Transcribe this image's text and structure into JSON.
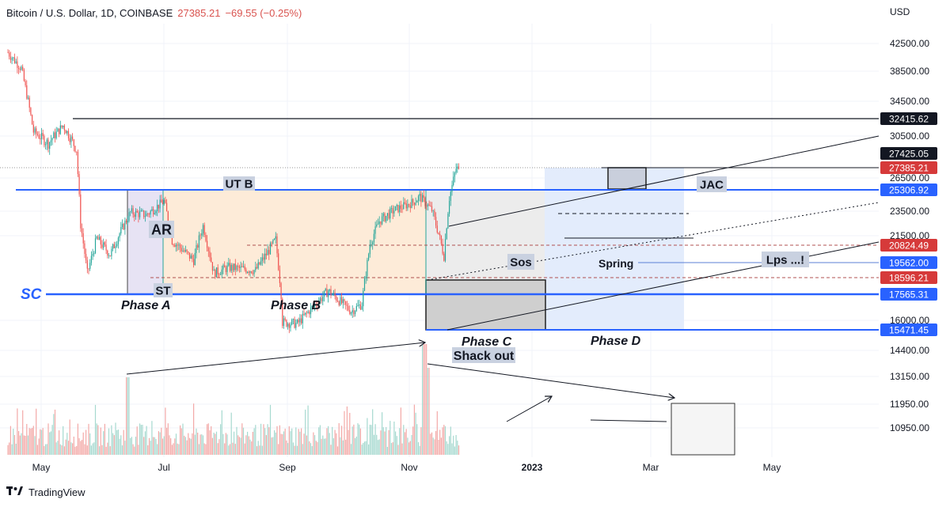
{
  "header": {
    "symbol": "Bitcoin / U.S. Dollar, 1D, COINBASE",
    "price": "27385.21",
    "change": "−69.55 (−0.25%)",
    "currency": "USD"
  },
  "brand": {
    "name": "TradingView",
    "logo_icon": "tradingview-logo-icon"
  },
  "colors": {
    "up": "#26a69a",
    "down": "#ef5350",
    "level_blue": "#2962ff",
    "dark_label": "#131722",
    "red_label": "#d63a3a",
    "phase_a": "#e7e3f4",
    "phase_b": "#fdebd8",
    "phase_c": "#ececec",
    "phase_d": "#e3ecfc"
  },
  "chart_data": {
    "type": "candlestick",
    "title": "Bitcoin / U.S. Dollar, 1D, COINBASE",
    "x_ticks": [
      "May",
      "Jul",
      "Sep",
      "Nov",
      "2023",
      "Mar",
      "May"
    ],
    "y_ticks": [
      42500,
      38500,
      34500,
      30500,
      26500,
      23500,
      21500,
      16000,
      14400,
      13150,
      11950,
      10950
    ],
    "y_label_texts": [
      "42500.00",
      "38500.00",
      "34500.00",
      "30500.00",
      "26500.00",
      "23500.00",
      "21500.00",
      "16000.00",
      "14400.00",
      "13150.00",
      "11950.00",
      "10950.00"
    ],
    "price_labels": [
      {
        "text": "32415.62",
        "style": "dark"
      },
      {
        "text": "27425.05",
        "style": "dark"
      },
      {
        "text": "27385.21",
        "style": "red"
      },
      {
        "text": "25306.92",
        "style": "blue"
      },
      {
        "text": "20824.49",
        "style": "red"
      },
      {
        "text": "19562.00",
        "style": "blue"
      },
      {
        "text": "18596.21",
        "style": "red"
      },
      {
        "text": "17565.31",
        "style": "blue"
      },
      {
        "text": "15471.45",
        "style": "blue"
      }
    ],
    "price_keypoints": [
      {
        "date": "2022-04-20",
        "close": 41200
      },
      {
        "date": "2022-04-30",
        "close": 38900
      },
      {
        "date": "2022-05-09",
        "close": 31000
      },
      {
        "date": "2022-05-20",
        "close": 29800
      },
      {
        "date": "2022-05-31",
        "close": 31700
      },
      {
        "date": "2022-06-10",
        "close": 29200
      },
      {
        "date": "2022-06-13",
        "close": 22400
      },
      {
        "date": "2022-06-18",
        "close": 18900
      },
      {
        "date": "2022-06-25",
        "close": 21300
      },
      {
        "date": "2022-07-05",
        "close": 20200
      },
      {
        "date": "2022-07-20",
        "close": 23400
      },
      {
        "date": "2022-08-01",
        "close": 23200
      },
      {
        "date": "2022-08-14",
        "close": 24400
      },
      {
        "date": "2022-08-20",
        "close": 21200
      },
      {
        "date": "2022-09-05",
        "close": 19800
      },
      {
        "date": "2022-09-12",
        "close": 22300
      },
      {
        "date": "2022-09-20",
        "close": 18900
      },
      {
        "date": "2022-10-01",
        "close": 19300
      },
      {
        "date": "2022-10-21",
        "close": 19100
      },
      {
        "date": "2022-11-05",
        "close": 21200
      },
      {
        "date": "2022-11-09",
        "close": 17600
      },
      {
        "date": "2022-11-10",
        "close": 15900
      },
      {
        "date": "2022-11-21",
        "close": 15800
      },
      {
        "date": "2022-12-14",
        "close": 17800
      },
      {
        "date": "2022-12-31",
        "close": 16550
      },
      {
        "date": "2023-01-08",
        "close": 17000
      },
      {
        "date": "2023-01-14",
        "close": 20900
      },
      {
        "date": "2023-01-21",
        "close": 22700
      },
      {
        "date": "2023-02-01",
        "close": 23600
      },
      {
        "date": "2023-02-15",
        "close": 24300
      },
      {
        "date": "2023-02-20",
        "close": 24800
      },
      {
        "date": "2023-03-01",
        "close": 23600
      },
      {
        "date": "2023-03-10",
        "close": 20100
      },
      {
        "date": "2023-03-14",
        "close": 24700
      },
      {
        "date": "2023-03-19",
        "close": 27400
      },
      {
        "date": "2023-03-21",
        "close": 27385.21
      }
    ],
    "annotations": [
      {
        "text": "UT B",
        "style": "boxed"
      },
      {
        "text": "AR",
        "style": "boxed-large"
      },
      {
        "text": "ST",
        "style": "boxed"
      },
      {
        "text": "SC",
        "style": "blue-italic"
      },
      {
        "text": "Phase A",
        "style": "italic"
      },
      {
        "text": "Phase B",
        "style": "italic"
      },
      {
        "text": "Phase C",
        "style": "italic"
      },
      {
        "text": "Shack out",
        "style": "boxed"
      },
      {
        "text": "Phase D",
        "style": "italic"
      },
      {
        "text": "Sos",
        "style": "boxed"
      },
      {
        "text": "Spring",
        "style": "plain-bold"
      },
      {
        "text": "Lps ...!",
        "style": "boxed"
      },
      {
        "text": "JAC",
        "style": "boxed"
      }
    ],
    "grid": true,
    "legend": "none"
  }
}
